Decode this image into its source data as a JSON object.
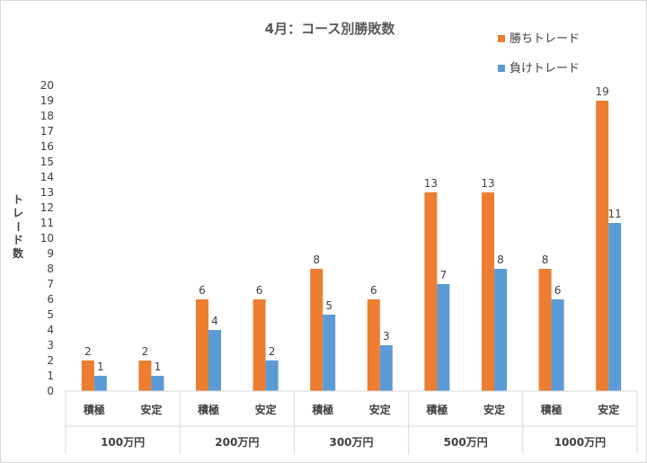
{
  "chart_data": {
    "type": "bar",
    "title": "4月：コース別勝敗数",
    "ylabel": "トレード数",
    "ylabel_chars": [
      "ト",
      "レ",
      "ー",
      "ド",
      "数"
    ],
    "ylim": [
      0,
      20
    ],
    "yticks": [
      0,
      1,
      2,
      3,
      4,
      5,
      6,
      7,
      8,
      9,
      10,
      11,
      12,
      13,
      14,
      15,
      16,
      17,
      18,
      19,
      20
    ],
    "grid": false,
    "legend_position": "top-right",
    "groups": [
      "100万円",
      "200万円",
      "300万円",
      "500万円",
      "1000万円"
    ],
    "categories": [
      "積極",
      "安定",
      "積極",
      "安定",
      "積極",
      "安定",
      "積極",
      "安定",
      "積極",
      "安定"
    ],
    "series": [
      {
        "name": "勝ちトレード",
        "color": "#ed7d31",
        "values": [
          2,
          2,
          6,
          6,
          8,
          6,
          13,
          13,
          8,
          19
        ]
      },
      {
        "name": "負けトレード",
        "color": "#5b9bd5",
        "values": [
          1,
          1,
          4,
          2,
          5,
          3,
          7,
          8,
          6,
          11
        ]
      }
    ]
  }
}
